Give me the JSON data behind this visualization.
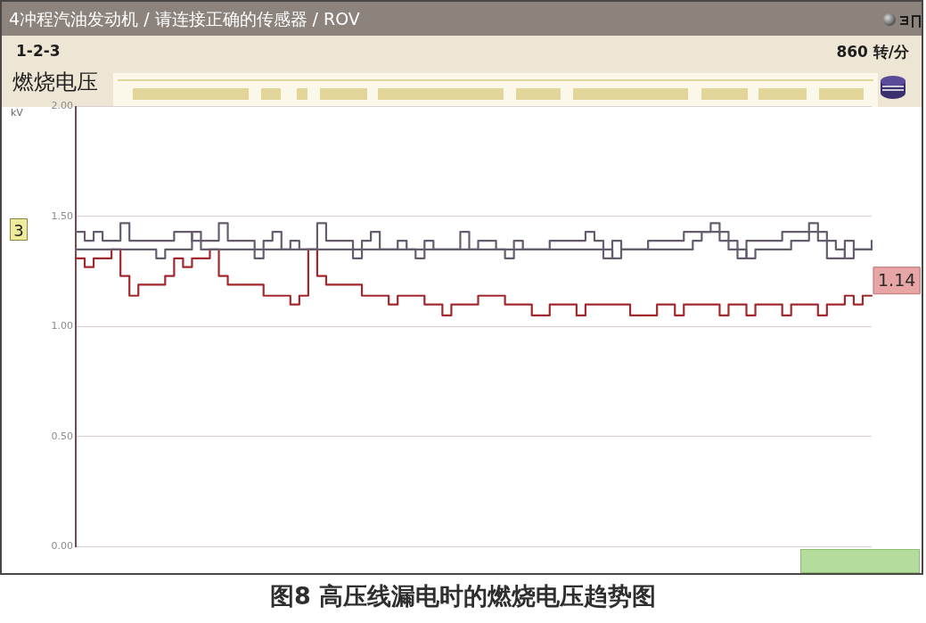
{
  "chart_data": {
    "type": "step",
    "title": "燃烧电压",
    "subtitle": "4冲程汽油发动机 / 请连接正确的传感器 / ROV",
    "ylabel": "kV",
    "annotations": [
      "1-2-3",
      "860 转/分",
      "3",
      "图8 高压线漏电时的燃烧电压趋势图"
    ],
    "categories": [
      null,
      null,
      null,
      null,
      null,
      null,
      null,
      null,
      null,
      null,
      null,
      null,
      null,
      null,
      null,
      null,
      null,
      null,
      null,
      null,
      null,
      null,
      null,
      null,
      null,
      null,
      null,
      null,
      null,
      null,
      null,
      null,
      null,
      null,
      null,
      null,
      null,
      null,
      null,
      null,
      null,
      null,
      null,
      null,
      null,
      null,
      null,
      null,
      null,
      null,
      null,
      null,
      null,
      null,
      null,
      null,
      null,
      null,
      null,
      null,
      null,
      null,
      null,
      null,
      null,
      null,
      null,
      null,
      null,
      null,
      null,
      null,
      null,
      null,
      null,
      null,
      null,
      null,
      null,
      null,
      null,
      null,
      null,
      null,
      null,
      null,
      null,
      null,
      null,
      null
    ],
    "series": [
      {
        "color": "#655d6e",
        "values": [
          1.43,
          1.39,
          1.43,
          1.39,
          1.39,
          1.47,
          1.39,
          1.39,
          1.39,
          1.39,
          1.39,
          1.43,
          1.43,
          1.39,
          1.39,
          1.39,
          1.47,
          1.39,
          1.39,
          1.39,
          1.31,
          1.39,
          1.43,
          1.35,
          1.39,
          1.35,
          1.35,
          1.47,
          1.39,
          1.39,
          1.39,
          1.31,
          1.39,
          1.43,
          1.35,
          1.35,
          1.39,
          1.35,
          1.31,
          1.39,
          1.35,
          1.35,
          1.35,
          1.43,
          1.35,
          1.39,
          1.39,
          1.35,
          1.31,
          1.39,
          1.35,
          1.35,
          1.35,
          1.39,
          1.39,
          1.39,
          1.39,
          1.43,
          1.39,
          1.31,
          1.39,
          1.35,
          1.35,
          1.35,
          1.39,
          1.39,
          1.39,
          1.39,
          1.43,
          1.43,
          1.43,
          1.47,
          1.39,
          1.35,
          1.31,
          1.39,
          1.39,
          1.39,
          1.39,
          1.43,
          1.43,
          1.43,
          1.47,
          1.39,
          1.31,
          1.31,
          1.39,
          1.35,
          1.35,
          1.39
        ]
      },
      {
        "color": "#655d6e",
        "values": [
          1.35,
          1.35,
          1.35,
          1.35,
          1.35,
          1.35,
          1.35,
          1.35,
          1.35,
          1.31,
          1.35,
          1.35,
          1.35,
          1.43,
          1.35,
          1.35,
          1.35,
          1.35,
          1.35,
          1.35,
          1.35,
          1.35,
          1.35,
          1.35,
          1.35,
          1.35,
          1.35,
          1.35,
          1.35,
          1.35,
          1.35,
          1.35,
          1.35,
          1.35,
          1.35,
          1.35,
          1.35,
          1.35,
          1.35,
          1.35,
          1.35,
          1.35,
          1.35,
          1.35,
          1.35,
          1.35,
          1.35,
          1.35,
          1.35,
          1.35,
          1.35,
          1.35,
          1.35,
          1.35,
          1.35,
          1.35,
          1.35,
          1.35,
          1.35,
          1.35,
          1.31,
          1.35,
          1.35,
          1.35,
          1.35,
          1.35,
          1.35,
          1.35,
          1.35,
          1.39,
          1.43,
          1.43,
          1.43,
          1.39,
          1.35,
          1.31,
          1.35,
          1.35,
          1.35,
          1.35,
          1.39,
          1.39,
          1.43,
          1.43,
          1.39,
          1.35,
          1.31,
          1.35,
          1.35,
          1.35
        ]
      },
      {
        "color": "#a3282c",
        "values": [
          1.31,
          1.27,
          1.31,
          1.31,
          1.35,
          1.23,
          1.14,
          1.19,
          1.19,
          1.19,
          1.23,
          1.31,
          1.27,
          1.31,
          1.31,
          1.35,
          1.23,
          1.19,
          1.19,
          1.19,
          1.19,
          1.14,
          1.14,
          1.14,
          1.1,
          1.14,
          1.35,
          1.23,
          1.19,
          1.19,
          1.19,
          1.19,
          1.14,
          1.14,
          1.14,
          1.1,
          1.14,
          1.14,
          1.14,
          1.1,
          1.1,
          1.05,
          1.1,
          1.1,
          1.1,
          1.14,
          1.14,
          1.14,
          1.1,
          1.1,
          1.1,
          1.05,
          1.05,
          1.1,
          1.1,
          1.1,
          1.05,
          1.1,
          1.1,
          1.1,
          1.1,
          1.1,
          1.05,
          1.05,
          1.05,
          1.1,
          1.1,
          1.05,
          1.1,
          1.1,
          1.1,
          1.1,
          1.05,
          1.1,
          1.1,
          1.05,
          1.1,
          1.1,
          1.1,
          1.05,
          1.1,
          1.1,
          1.1,
          1.05,
          1.1,
          1.1,
          1.14,
          1.1,
          1.14,
          1.14
        ],
        "value_labels": [
          null,
          null,
          null,
          null,
          null,
          null,
          null,
          null,
          null,
          null,
          null,
          null,
          null,
          null,
          null,
          null,
          null,
          null,
          null,
          null,
          null,
          null,
          null,
          null,
          null,
          null,
          null,
          null,
          null,
          null,
          null,
          null,
          null,
          null,
          null,
          null,
          null,
          null,
          null,
          null,
          null,
          null,
          null,
          null,
          null,
          null,
          null,
          null,
          null,
          null,
          null,
          null,
          null,
          null,
          null,
          null,
          null,
          null,
          null,
          null,
          null,
          null,
          null,
          null,
          null,
          null,
          null,
          null,
          null,
          null,
          null,
          null,
          null,
          null,
          null,
          null,
          null,
          null,
          null,
          null,
          null,
          null,
          null,
          null,
          null,
          null,
          null,
          null,
          null,
          "1.14"
        ]
      }
    ],
    "ylim": [
      0,
      2
    ],
    "yticks": [
      {
        "value": 0,
        "label": "0.00"
      },
      {
        "value": 0.5,
        "label": "0.50"
      },
      {
        "value": 1,
        "label": "1.00"
      },
      {
        "value": 1.5,
        "label": "1.50"
      },
      {
        "value": 2,
        "label": "2.00"
      }
    ],
    "grid": "y",
    "marker": "none"
  }
}
